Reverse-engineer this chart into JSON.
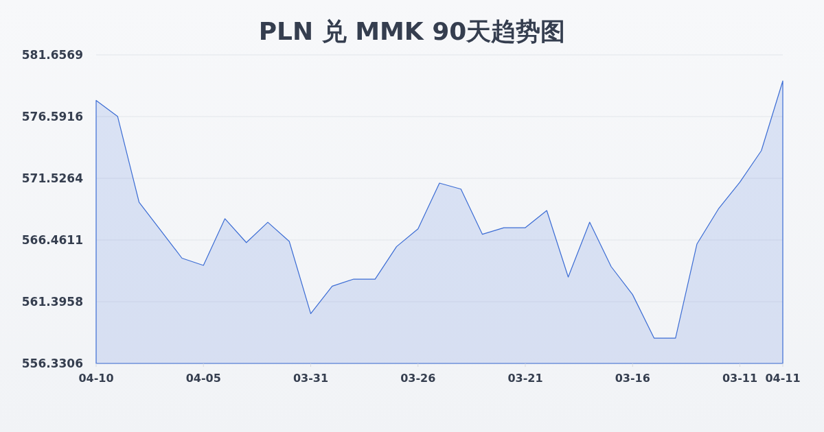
{
  "chart_data": {
    "type": "area",
    "title": "PLN 兑 MMK 90天趋势图",
    "categories": [
      "04-10",
      null,
      null,
      null,
      null,
      "04-05",
      null,
      null,
      null,
      null,
      "03-31",
      null,
      null,
      null,
      null,
      "03-26",
      null,
      null,
      null,
      null,
      "03-21",
      null,
      null,
      null,
      null,
      "03-16",
      null,
      null,
      null,
      null,
      "03-11",
      null,
      "04-11"
    ],
    "values": [
      577.92,
      576.61,
      569.57,
      567.27,
      564.97,
      564.38,
      568.21,
      566.25,
      567.92,
      566.35,
      560.42,
      562.67,
      563.25,
      563.25,
      565.92,
      567.38,
      571.13,
      570.64,
      566.93,
      567.47,
      567.47,
      568.88,
      563.42,
      567.92,
      564.28,
      561.98,
      558.41,
      558.41,
      566.14,
      569.01,
      571.21,
      573.79,
      579.52
    ],
    "color": "#3b6cd4",
    "ylim": [
      556.3306,
      581.6569
    ],
    "yticks": [
      556.3306,
      561.3958,
      566.4611,
      571.5264,
      576.5916,
      581.6569
    ],
    "grid": "y"
  }
}
